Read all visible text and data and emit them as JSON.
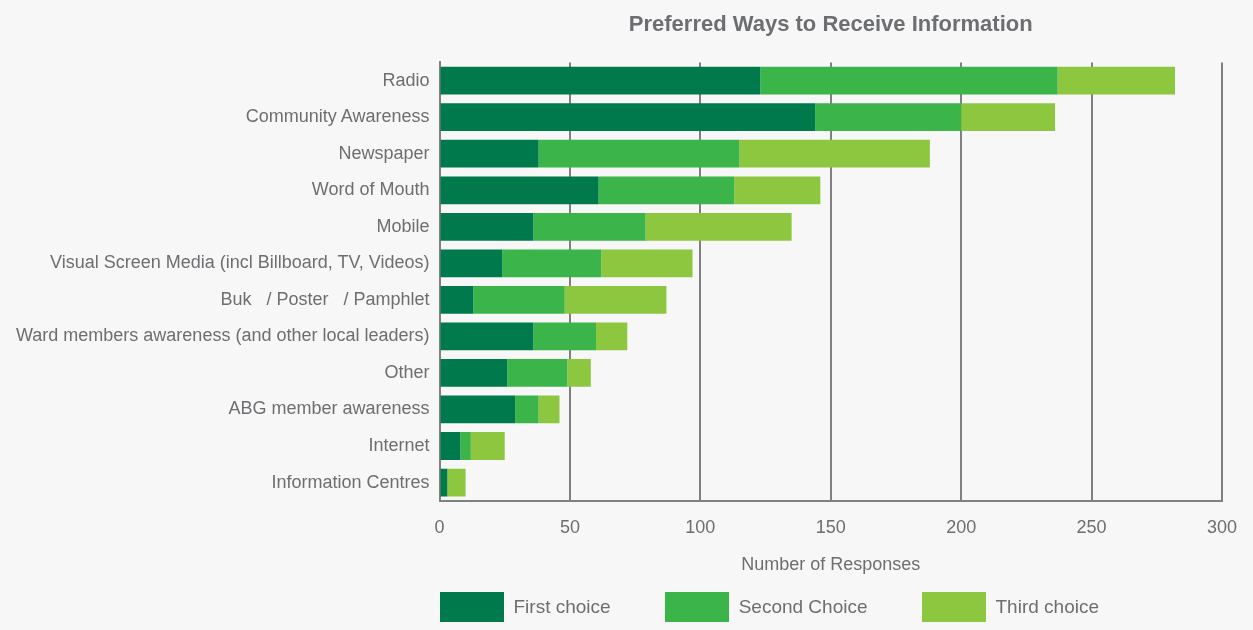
{
  "chart_data": {
    "type": "bar",
    "title": "Preferred Ways to Receive Information",
    "xlabel": "Number of Responses",
    "categories": [
      "Radio",
      "Community Awareness",
      "Newspaper",
      "Word of Mouth",
      "Mobile",
      "Visual Screen Media (incl Billboard, TV, Videos)",
      "Buk   / Poster   / Pamphlet",
      "Ward members awareness (and other local leaders)",
      "Other",
      "ABG member awareness",
      "Internet",
      "Information Centres"
    ],
    "series": [
      {
        "name": "First choice",
        "color": "#007a4d",
        "values": [
          123,
          144,
          38,
          61,
          36,
          24,
          13,
          36,
          26,
          29,
          8,
          3
        ]
      },
      {
        "name": "Second Choice",
        "color": "#3bb54a",
        "values": [
          114,
          56,
          77,
          52,
          43,
          38,
          35,
          24,
          23,
          9,
          4,
          0
        ]
      },
      {
        "name": "Third choice",
        "color": "#8dc63f",
        "values": [
          45,
          36,
          73,
          33,
          56,
          35,
          39,
          12,
          9,
          8,
          13,
          7
        ]
      }
    ],
    "stacked": true,
    "orientation": "horizontal",
    "xlim": [
      0,
      300
    ],
    "xticks": [
      0,
      50,
      100,
      150,
      200,
      250,
      300
    ],
    "grid": "x",
    "legend": "bottom"
  }
}
